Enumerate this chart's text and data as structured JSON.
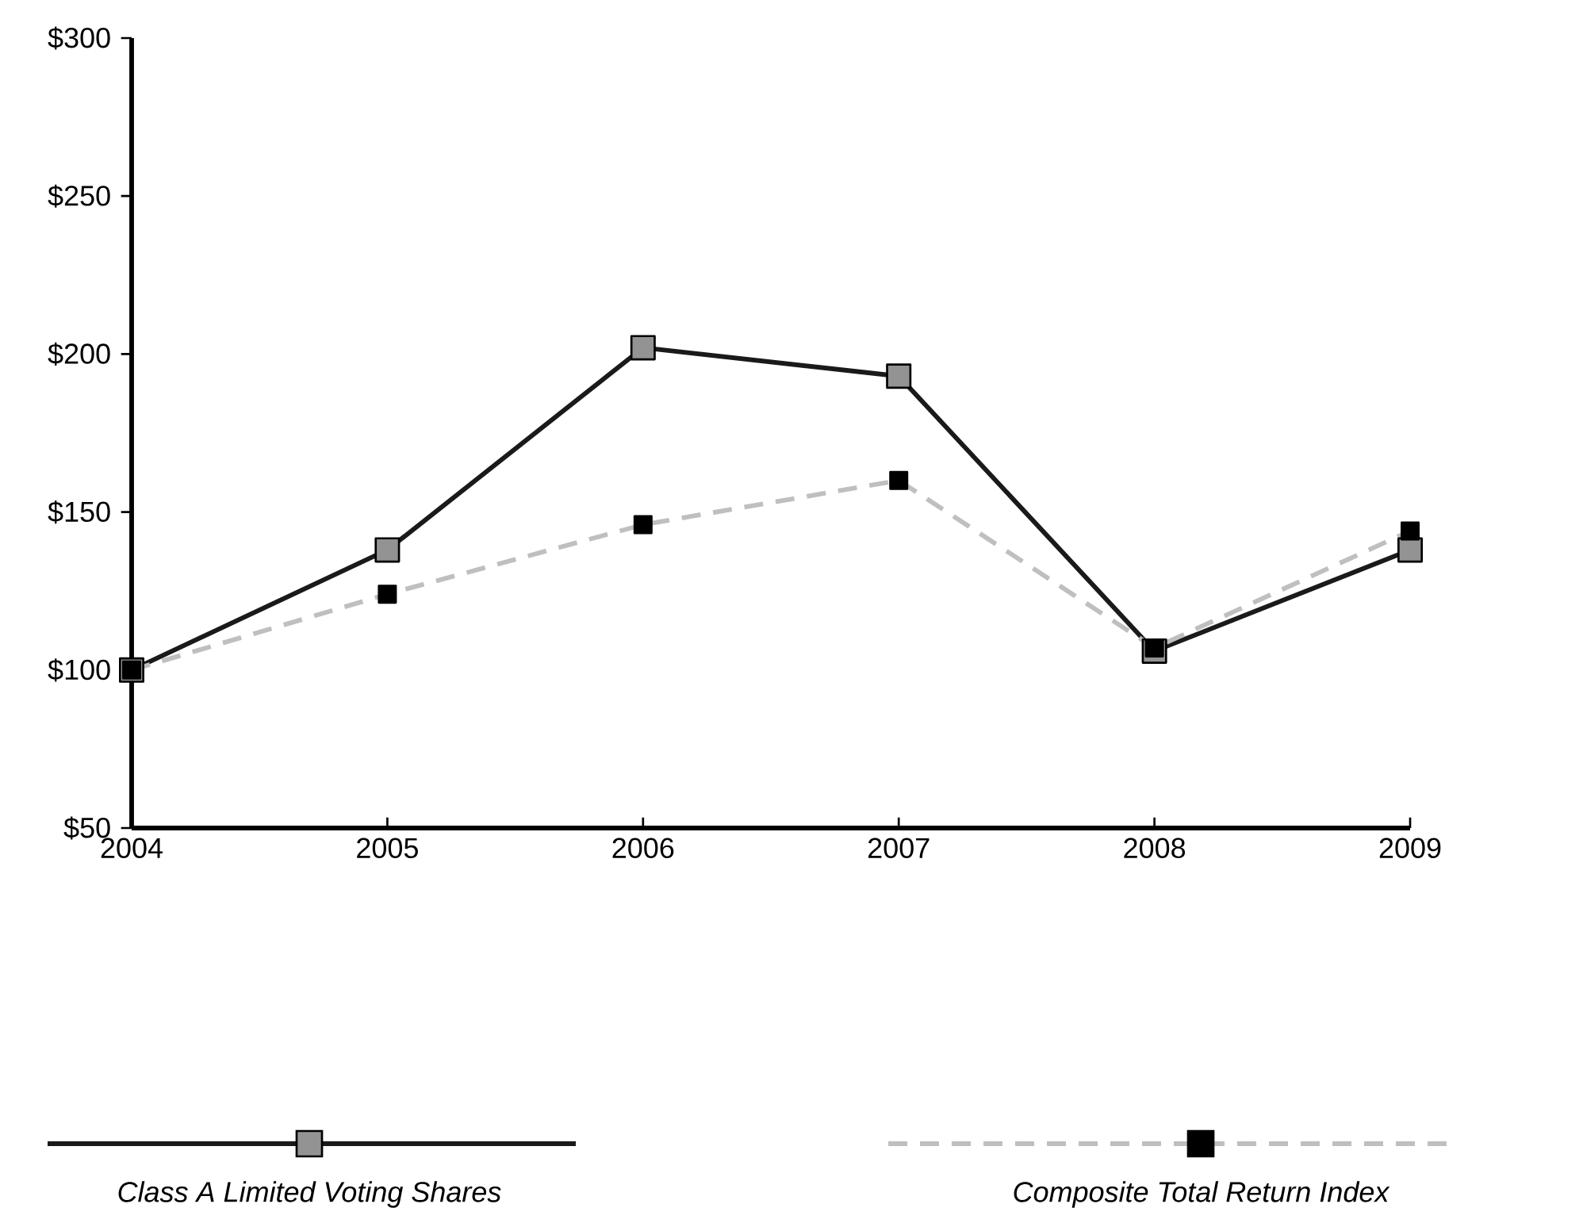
{
  "chart_data": {
    "type": "line",
    "x": [
      2004,
      2005,
      2006,
      2007,
      2008,
      2009
    ],
    "xlim": [
      2004,
      2009
    ],
    "xticks": [
      2004,
      2005,
      2006,
      2007,
      2008,
      2009
    ],
    "ylim": [
      50,
      300
    ],
    "yticks": [
      {
        "value": 50,
        "label": "$50"
      },
      {
        "value": 100,
        "label": "$100"
      },
      {
        "value": 150,
        "label": "$150"
      },
      {
        "value": 200,
        "label": "$200"
      },
      {
        "value": 250,
        "label": "$250"
      },
      {
        "value": 300,
        "label": "$300"
      }
    ],
    "marker": "square",
    "legend": "bottom",
    "grid": false,
    "series": [
      {
        "name": "Class A Limited Voting Shares",
        "color": "#1a1a1a",
        "line_style": "solid",
        "values": [
          100,
          138,
          202,
          193,
          106,
          138
        ]
      },
      {
        "name": "Composite Total Return Index",
        "color": "#bfbfbf",
        "line_style": "dashed",
        "values": [
          100,
          124,
          146,
          160,
          107,
          144
        ]
      }
    ]
  }
}
